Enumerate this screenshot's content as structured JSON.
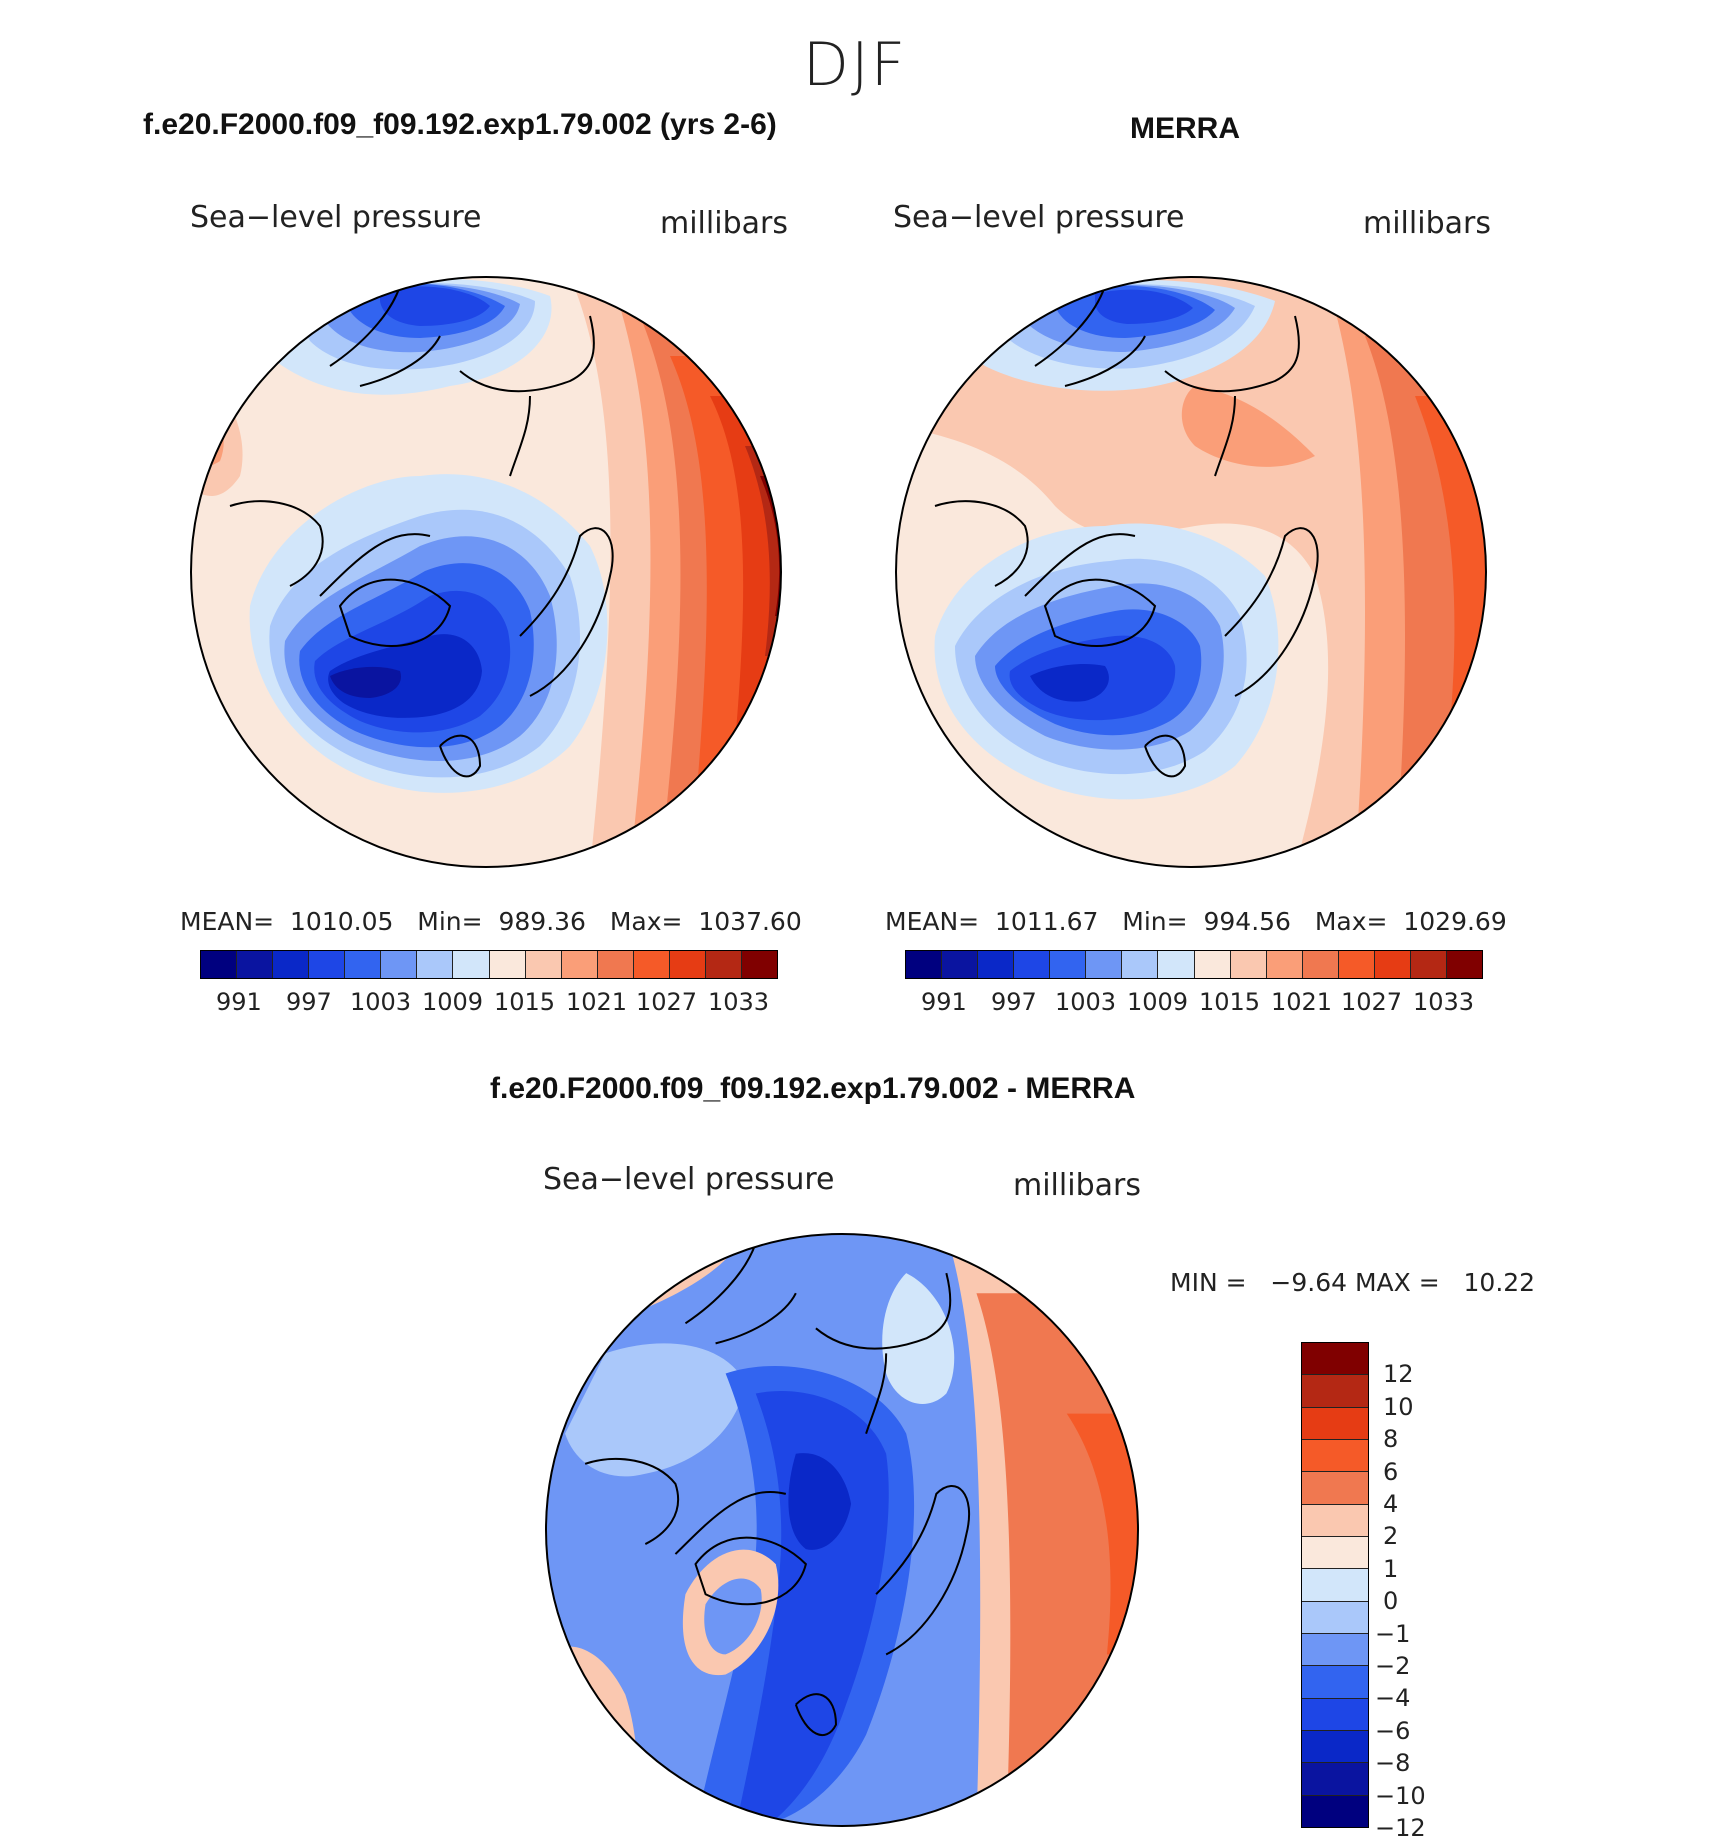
{
  "season": "DJF",
  "panels": {
    "model": {
      "title": "f.e20.F2000.f09_f09.192.exp1.79.002 (yrs 2-6)",
      "variable": "Sea−level pressure",
      "units": "millibars",
      "mean_label": "MEAN=",
      "mean": "1010.05",
      "min_label": "Min=",
      "min": "989.36",
      "max_label": "Max=",
      "max": "1037.60"
    },
    "obs": {
      "title": "MERRA",
      "variable": "Sea−level pressure",
      "units": "millibars",
      "mean_label": "MEAN=",
      "mean": "1011.67",
      "min_label": "Min=",
      "min": "994.56",
      "max_label": "Max=",
      "max": "1029.69"
    },
    "diff": {
      "title": "f.e20.F2000.f09_f09.192.exp1.79.002 - MERRA",
      "variable": "Sea−level pressure",
      "units": "millibars",
      "min_label": "MIN =",
      "min": "−9.64",
      "max_label": "MAX =",
      "max": "10.22"
    }
  },
  "abs_colorbar": {
    "colors": [
      "#00007f",
      "#0a14a0",
      "#0a28c8",
      "#1e46e6",
      "#3264f0",
      "#6e96f5",
      "#aac8fa",
      "#d2e6fa",
      "#fae8dc",
      "#fac8b0",
      "#fa9e78",
      "#f07850",
      "#f55a28",
      "#e63c14",
      "#b42814",
      "#800000"
    ],
    "labels": [
      "991",
      "997",
      "1003",
      "1009",
      "1015",
      "1021",
      "1027",
      "1033"
    ]
  },
  "diff_colorbar": {
    "colors": [
      "#800000",
      "#b42814",
      "#e63c14",
      "#f55a28",
      "#f07850",
      "#fac8b0",
      "#fae8dc",
      "#d2e6fa",
      "#aac8fa",
      "#6e96f5",
      "#3264f0",
      "#1e46e6",
      "#0a28c8",
      "#0a14a0",
      "#00007f"
    ],
    "labels": [
      "12",
      "10",
      "8",
      "6",
      "4",
      "2",
      "1",
      "0",
      "−1",
      "−2",
      "−4",
      "−6",
      "−8",
      "−10",
      "−12"
    ]
  }
}
